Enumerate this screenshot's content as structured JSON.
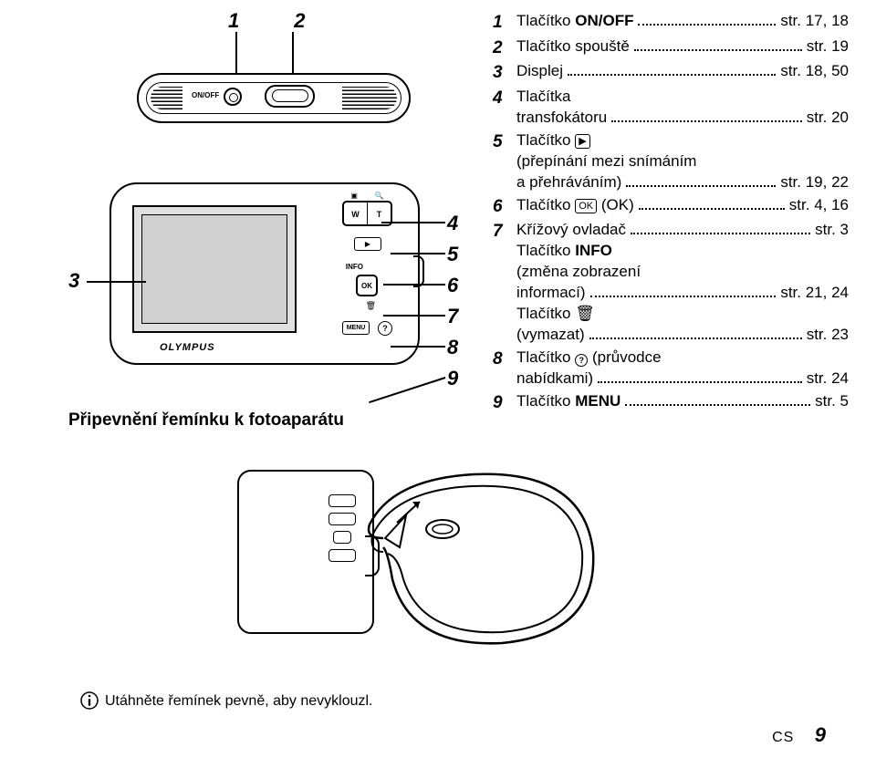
{
  "colors": {
    "text": "#000000",
    "bg": "#ffffff",
    "screen": "#d8d8d8"
  },
  "fonts": {
    "body": "Arial",
    "body_size_pt": 12,
    "legend_size_pt": 13,
    "heading_size_pt": 14,
    "callout_num_size_pt": 16
  },
  "top_labels": {
    "n1": "1",
    "n2": "2",
    "onoff": "ON/OFF"
  },
  "back_labels": {
    "brand": "OLYMPUS",
    "W": "W",
    "T": "T",
    "play": "▶",
    "OK": "OK",
    "INFO": "INFO",
    "MENU": "MENU",
    "help": "?",
    "trash": "🗑"
  },
  "left_callout": {
    "n3": "3"
  },
  "right_callouts": [
    "4",
    "5",
    "6",
    "7",
    "8",
    "9"
  ],
  "legend": [
    {
      "n": "1",
      "lines": [
        {
          "label": "Tlačítko ON/OFF",
          "boldLabel": "ON/OFF",
          "labelPrefix": "Tlačítko ",
          "page": "str. 17, 18"
        }
      ]
    },
    {
      "n": "2",
      "lines": [
        {
          "label": "Tlačítko spouště",
          "page": "str. 19"
        }
      ]
    },
    {
      "n": "3",
      "lines": [
        {
          "label": "Displej",
          "page": "str. 18, 50"
        }
      ]
    },
    {
      "n": "4",
      "lines": [
        {
          "label": "Tlačítka",
          "noPage": true
        },
        {
          "label": "transfokátoru",
          "page": "str. 20",
          "indent": true
        }
      ]
    },
    {
      "n": "5",
      "lines": [
        {
          "label": "Tlačítko ",
          "iconBox": "▶",
          "noPage": true
        },
        {
          "label": "(přepínání mezi snímáním",
          "noPage": true,
          "indent": true
        },
        {
          "label": "a přehráváním)",
          "page": "str. 19, 22",
          "indent": true
        }
      ]
    },
    {
      "n": "6",
      "lines": [
        {
          "label": "Tlačítko ",
          "iconBox": "OK",
          "suffix": " (OK)",
          "page": "str. 4, 16"
        }
      ]
    },
    {
      "n": "7",
      "lines": [
        {
          "label": "Křížový ovladač",
          "page": "str. 3"
        },
        {
          "label": "Tlačítko INFO",
          "boldLabel": "INFO",
          "labelPrefix": "Tlačítko ",
          "noPage": true
        },
        {
          "label": "(změna zobrazení",
          "noPage": true,
          "indent": true
        },
        {
          "label": "informací)",
          "page": "str. 21, 24",
          "indent": true
        },
        {
          "label": "Tlačítko 🗑",
          "noPage": true
        },
        {
          "label": "(vymazat)",
          "page": "str. 23",
          "indent": true
        }
      ]
    },
    {
      "n": "8",
      "lines": [
        {
          "label": "Tlačítko ",
          "iconCircle": "?",
          "suffix": " (průvodce",
          "noPage": true
        },
        {
          "label": "nabídkami)",
          "page": "str. 24",
          "indent": true
        }
      ]
    },
    {
      "n": "9",
      "lines": [
        {
          "label": "Tlačítko MENU",
          "boldLabel": "MENU",
          "labelPrefix": "Tlačítko ",
          "page": "str. 5"
        }
      ]
    }
  ],
  "section_heading": "Připevnění řemínku k fotoaparátu",
  "footer_note": "Utáhněte řemínek pevně, aby nevyklouzl.",
  "page_footer": {
    "lang": "CS",
    "page": "9"
  }
}
